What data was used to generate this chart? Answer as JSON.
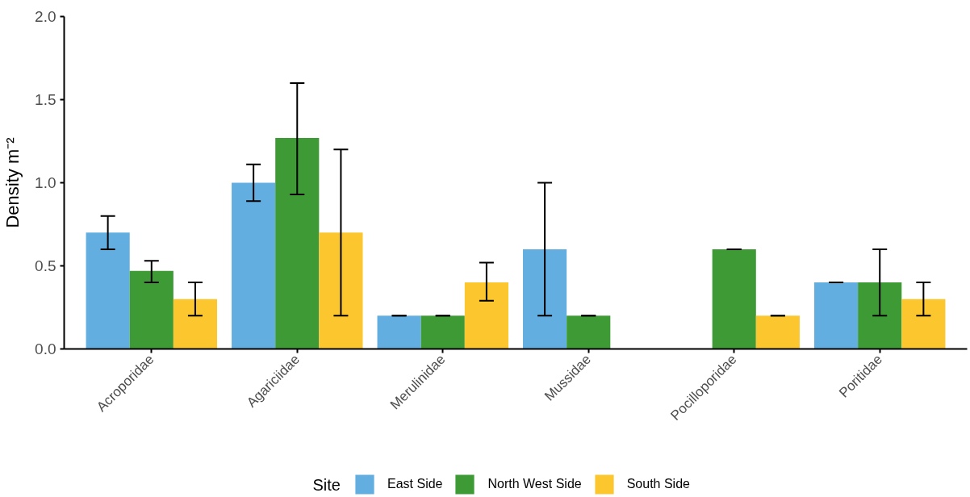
{
  "chart_data": {
    "type": "bar",
    "ylabel": "Density m⁻²",
    "legend_title": "Site",
    "categories": [
      "Acroporidae",
      "Agariciidae",
      "Merulinidae",
      "Mussidae",
      "Pocilloporidae",
      "Poritidae"
    ],
    "series": [
      {
        "name": "East Side",
        "color": "#62aee1",
        "values": [
          0.7,
          1.0,
          0.2,
          0.6,
          null,
          0.4
        ],
        "errors": [
          [
            0.6,
            0.8
          ],
          [
            0.89,
            1.11
          ],
          [
            0.2,
            0.2
          ],
          [
            0.2,
            1.0
          ],
          null,
          [
            0.4,
            0.4
          ]
        ]
      },
      {
        "name": "North West Side",
        "color": "#3d9a34",
        "values": [
          0.47,
          1.27,
          0.2,
          0.2,
          0.6,
          0.4
        ],
        "errors": [
          [
            0.4,
            0.53
          ],
          [
            0.93,
            1.6
          ],
          [
            0.2,
            0.2
          ],
          [
            0.2,
            0.2
          ],
          [
            0.6,
            0.6
          ],
          [
            0.2,
            0.6
          ]
        ]
      },
      {
        "name": "South Side",
        "color": "#fbc62e",
        "values": [
          0.3,
          0.7,
          0.4,
          null,
          0.2,
          0.3
        ],
        "errors": [
          [
            0.2,
            0.4
          ],
          [
            0.2,
            1.2
          ],
          [
            0.29,
            0.52
          ],
          null,
          [
            0.2,
            0.2
          ],
          [
            0.2,
            0.4
          ]
        ]
      }
    ],
    "ylim": [
      0,
      2
    ],
    "yticks": [
      {
        "value": 0,
        "label": "0.0"
      },
      {
        "value": 0.5,
        "label": "0.5"
      },
      {
        "value": 1,
        "label": "1.0"
      },
      {
        "value": 1.5,
        "label": "1.5"
      },
      {
        "value": 2,
        "label": "2.0"
      }
    ],
    "grid": false,
    "legend": "bottom"
  }
}
